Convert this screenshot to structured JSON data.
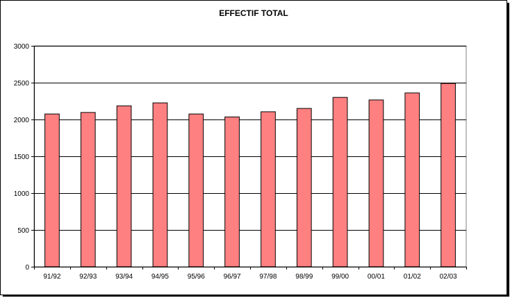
{
  "chart_data": {
    "type": "bar",
    "title": "EFFECTIF TOTAL",
    "xlabel": "",
    "ylabel": "",
    "categories": [
      "91/92",
      "92/93",
      "93/94",
      "94/95",
      "95/96",
      "96/97",
      "97/98",
      "98/99",
      "99/00",
      "00/01",
      "01/02",
      "02/03"
    ],
    "values": [
      2075,
      2095,
      2185,
      2225,
      2075,
      2035,
      2105,
      2150,
      2300,
      2265,
      2360,
      2490
    ],
    "ylim": [
      0,
      3000
    ],
    "yticks": [
      0,
      500,
      1000,
      1500,
      2000,
      2500,
      3000
    ],
    "grid": true,
    "legend": "none",
    "bar_color": "#FF8080",
    "bar_border": "#000000"
  }
}
